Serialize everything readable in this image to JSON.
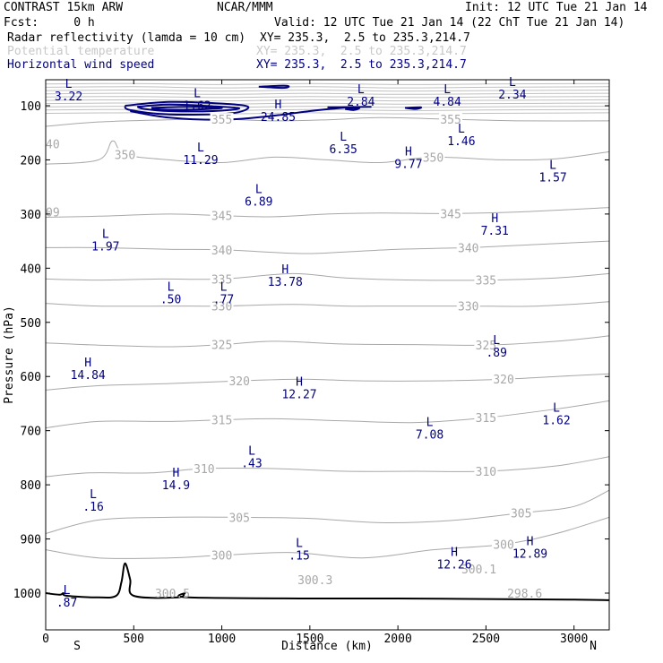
{
  "header": {
    "model": "CONTRAST 15km ARW",
    "org": "NCAR/MMM",
    "init": "Init: 12 UTC Tue 21 Jan 14",
    "fcst": "Fcst:     0 h",
    "valid": "Valid: 12 UTC Tue 21 Jan 14 (22 ChT Tue 21 Jan 14)",
    "fields": [
      {
        "name": "Radar reflectivity (lamda = 10 cm)",
        "xy": "XY= 235.3,  2.5 to 235.3,214.7",
        "color": "#000000"
      },
      {
        "name": "Potential temperature",
        "xy": "XY= 235.3,  2.5 to 235.3,214.7",
        "color": "#c8c8c8"
      },
      {
        "name": "Horizontal wind speed",
        "xy": "XY= 235.3,  2.5 to 235.3,214.7",
        "color": "#000080"
      }
    ]
  },
  "colors": {
    "theta": "#a8a8a8",
    "wind": "#000080",
    "terrain": "#000000",
    "frame": "#000000"
  },
  "chart_data": {
    "type": "cross-section",
    "xlabel": "Distance (km)",
    "ylabel": "Pressure (hPa)",
    "xlim": [
      0,
      3200
    ],
    "ylim": [
      1030,
      50
    ],
    "xticks": [
      0,
      500,
      1000,
      1500,
      2000,
      2500,
      3000
    ],
    "yticks": [
      100,
      200,
      300,
      400,
      500,
      600,
      700,
      800,
      900,
      1000
    ],
    "end_labels": {
      "left": "S",
      "right": "N"
    },
    "theta_levels": [
      {
        "value": 300,
        "label": "300",
        "pts": [
          [
            0,
            920
          ],
          [
            300,
            935
          ],
          [
            700,
            935
          ],
          [
            1000,
            930
          ],
          [
            1400,
            925
          ],
          [
            1800,
            935
          ],
          [
            2200,
            920
          ],
          [
            2600,
            910
          ],
          [
            2900,
            890
          ],
          [
            3200,
            860
          ]
        ]
      },
      {
        "value": 305,
        "label": "305",
        "pts": [
          [
            0,
            890
          ],
          [
            300,
            865
          ],
          [
            700,
            860
          ],
          [
            1100,
            860
          ],
          [
            1500,
            862
          ],
          [
            1900,
            870
          ],
          [
            2300,
            866
          ],
          [
            2700,
            852
          ],
          [
            3000,
            840
          ],
          [
            3200,
            810
          ]
        ]
      },
      {
        "value": 310,
        "label": "310",
        "pts": [
          [
            0,
            785
          ],
          [
            250,
            778
          ],
          [
            600,
            778
          ],
          [
            900,
            770
          ],
          [
            1300,
            770
          ],
          [
            1700,
            775
          ],
          [
            2100,
            775
          ],
          [
            2500,
            775
          ],
          [
            2900,
            765
          ],
          [
            3200,
            748
          ]
        ]
      },
      {
        "value": 315,
        "label": "315",
        "pts": [
          [
            0,
            695
          ],
          [
            300,
            683
          ],
          [
            700,
            683
          ],
          [
            1000,
            680
          ],
          [
            1300,
            678
          ],
          [
            1700,
            682
          ],
          [
            2100,
            685
          ],
          [
            2500,
            676
          ],
          [
            2900,
            660
          ],
          [
            3200,
            645
          ]
        ]
      },
      {
        "value": 320,
        "label": "320",
        "pts": [
          [
            0,
            625
          ],
          [
            300,
            617
          ],
          [
            700,
            613
          ],
          [
            1100,
            608
          ],
          [
            1450,
            605
          ],
          [
            1800,
            608
          ],
          [
            2200,
            608
          ],
          [
            2600,
            605
          ],
          [
            2900,
            600
          ],
          [
            3200,
            595
          ]
        ]
      },
      {
        "value": 325,
        "label": "325",
        "pts": [
          [
            0,
            538
          ],
          [
            300,
            542
          ],
          [
            700,
            545
          ],
          [
            1000,
            541
          ],
          [
            1300,
            535
          ],
          [
            1700,
            540
          ],
          [
            2100,
            541
          ],
          [
            2500,
            542
          ],
          [
            2900,
            535
          ],
          [
            3200,
            525
          ]
        ]
      },
      {
        "value": 330,
        "label": "330",
        "pts": [
          [
            0,
            465
          ],
          [
            300,
            470
          ],
          [
            700,
            470
          ],
          [
            1000,
            470
          ],
          [
            1400,
            467
          ],
          [
            1700,
            470
          ],
          [
            2000,
            470
          ],
          [
            2400,
            470
          ],
          [
            2800,
            470
          ],
          [
            3200,
            462
          ]
        ]
      },
      {
        "value": 335,
        "label": "335",
        "pts": [
          [
            0,
            420
          ],
          [
            300,
            422
          ],
          [
            650,
            420
          ],
          [
            1000,
            420
          ],
          [
            1400,
            410
          ],
          [
            1700,
            418
          ],
          [
            2100,
            422
          ],
          [
            2500,
            422
          ],
          [
            2900,
            418
          ],
          [
            3200,
            410
          ]
        ]
      },
      {
        "value": 340,
        "label": "340",
        "pts": [
          [
            0,
            362
          ],
          [
            300,
            362
          ],
          [
            700,
            365
          ],
          [
            1000,
            366
          ],
          [
            1450,
            373
          ],
          [
            1700,
            370
          ],
          [
            2000,
            365
          ],
          [
            2400,
            362
          ],
          [
            2800,
            356
          ],
          [
            3200,
            350
          ]
        ]
      },
      {
        "value": 345,
        "label": "345",
        "pts": [
          [
            0,
            306
          ],
          [
            300,
            304
          ],
          [
            700,
            300
          ],
          [
            1000,
            303
          ],
          [
            1300,
            305
          ],
          [
            1600,
            300
          ],
          [
            1900,
            298
          ],
          [
            2300,
            299
          ],
          [
            2700,
            296
          ],
          [
            3200,
            288
          ]
        ]
      },
      {
        "value": 350,
        "label": "350",
        "pts": [
          [
            0,
            208
          ],
          [
            300,
            200
          ],
          [
            380,
            165
          ],
          [
            450,
            190
          ],
          [
            700,
            200
          ],
          [
            1000,
            205
          ],
          [
            1300,
            195
          ],
          [
            1600,
            200
          ],
          [
            1900,
            205
          ],
          [
            2200,
            195
          ],
          [
            2600,
            200
          ],
          [
            2900,
            198
          ],
          [
            3200,
            185
          ]
        ]
      },
      {
        "value": 355,
        "label": "355",
        "pts": [
          [
            0,
            138
          ],
          [
            300,
            130
          ],
          [
            700,
            126
          ],
          [
            1000,
            125
          ],
          [
            1300,
            128
          ],
          [
            1600,
            126
          ],
          [
            1900,
            122
          ],
          [
            2300,
            125
          ],
          [
            2700,
            128
          ],
          [
            3200,
            128
          ]
        ]
      }
    ],
    "strat_isentropes": [
      60,
      66,
      72,
      78,
      84,
      90,
      96,
      102,
      108,
      114
    ],
    "theta_extra_labels": [
      {
        "text": "300.5",
        "x": 720,
        "p": 1000
      },
      {
        "text": "300.3",
        "x": 1530,
        "p": 975
      },
      {
        "text": "300.1",
        "x": 2460,
        "p": 955
      },
      {
        "text": "298.6",
        "x": 2720,
        "p": 1000
      },
      {
        "text": "40",
        "x": 40,
        "p": 170
      },
      {
        "text": "09",
        "x": 40,
        "p": 296
      }
    ],
    "wind_extrema": [
      {
        "type": "L",
        "value": "3.22",
        "x": 130,
        "p": 70
      },
      {
        "type": "L",
        "value": "1.62",
        "x": 860,
        "p": 88
      },
      {
        "type": "H",
        "value": "24.85",
        "x": 1320,
        "p": 108
      },
      {
        "type": "L",
        "value": "2.84",
        "x": 1790,
        "p": 80
      },
      {
        "type": "L",
        "value": "4.84",
        "x": 2280,
        "p": 80
      },
      {
        "type": "L",
        "value": "2.34",
        "x": 2650,
        "p": 67
      },
      {
        "type": "L",
        "value": "11.29",
        "x": 880,
        "p": 188
      },
      {
        "type": "L",
        "value": "6.35",
        "x": 1690,
        "p": 168
      },
      {
        "type": "L",
        "value": "1.46",
        "x": 2360,
        "p": 153
      },
      {
        "type": "H",
        "value": "9.77",
        "x": 2060,
        "p": 195
      },
      {
        "type": "L",
        "value": "1.57",
        "x": 2880,
        "p": 220
      },
      {
        "type": "L",
        "value": "6.89",
        "x": 1210,
        "p": 265
      },
      {
        "type": "H",
        "value": "7.31",
        "x": 2550,
        "p": 318
      },
      {
        "type": "L",
        "value": "1.97",
        "x": 340,
        "p": 347
      },
      {
        "type": "H",
        "value": "13.78",
        "x": 1360,
        "p": 413
      },
      {
        "type": "L",
        "value": ".50",
        "x": 710,
        "p": 445
      },
      {
        "type": "L",
        "value": ".77",
        "x": 1010,
        "p": 445
      },
      {
        "type": "L",
        "value": ".89",
        "x": 2560,
        "p": 543
      },
      {
        "type": "H",
        "value": "14.84",
        "x": 240,
        "p": 585
      },
      {
        "type": "H",
        "value": "12.27",
        "x": 1440,
        "p": 620
      },
      {
        "type": "L",
        "value": "1.62",
        "x": 2900,
        "p": 668
      },
      {
        "type": "L",
        "value": "7.08",
        "x": 2180,
        "p": 695
      },
      {
        "type": "L",
        "value": ".43",
        "x": 1170,
        "p": 748
      },
      {
        "type": "H",
        "value": "14.9",
        "x": 740,
        "p": 788
      },
      {
        "type": "L",
        "value": ".16",
        "x": 270,
        "p": 828
      },
      {
        "type": "L",
        "value": ".15",
        "x": 1440,
        "p": 918
      },
      {
        "type": "H",
        "value": "12.26",
        "x": 2320,
        "p": 935
      },
      {
        "type": "H",
        "value": "12.89",
        "x": 2750,
        "p": 915
      },
      {
        "type": "L",
        "value": ".87",
        "x": 120,
        "p": 1005
      }
    ],
    "wind_contours": [
      {
        "pts": [
          [
            450,
            100
          ],
          [
            700,
            93
          ],
          [
            1000,
            96
          ],
          [
            1150,
            102
          ],
          [
            1050,
            114
          ],
          [
            700,
            116
          ],
          [
            480,
            108
          ],
          [
            450,
            100
          ]
        ]
      },
      {
        "pts": [
          [
            520,
            102
          ],
          [
            700,
            98
          ],
          [
            950,
            101
          ],
          [
            1100,
            105
          ],
          [
            950,
            110
          ],
          [
            700,
            110
          ],
          [
            560,
            106
          ],
          [
            520,
            102
          ]
        ]
      },
      {
        "pts": [
          [
            600,
            104
          ],
          [
            800,
            102
          ],
          [
            1000,
            104
          ],
          [
            850,
            107
          ],
          [
            650,
            107
          ],
          [
            600,
            104
          ]
        ]
      },
      {
        "pts": [
          [
            480,
            110
          ],
          [
            700,
            122
          ],
          [
            1000,
            126
          ],
          [
            1250,
            120
          ],
          [
            1500,
            110
          ],
          [
            1650,
            105
          ],
          [
            1750,
            102
          ]
        ]
      },
      {
        "pts": [
          [
            1600,
            103
          ],
          [
            1850,
            102
          ]
        ]
      },
      {
        "pts": [
          [
            1700,
            106
          ],
          [
            1780,
            104
          ],
          [
            1750,
            108
          ],
          [
            1700,
            106
          ]
        ]
      },
      {
        "pts": [
          [
            2040,
            104
          ],
          [
            2130,
            103
          ],
          [
            2100,
            106
          ],
          [
            2040,
            104
          ]
        ]
      },
      {
        "pts": [
          [
            1210,
            65
          ],
          [
            1350,
            63
          ],
          [
            1380,
            65
          ],
          [
            1340,
            67
          ],
          [
            1210,
            65
          ]
        ]
      }
    ],
    "terrain": [
      [
        0,
        1000
      ],
      [
        80,
        1003
      ],
      [
        100,
        1000
      ],
      [
        120,
        1005
      ],
      [
        300,
        1008
      ],
      [
        400,
        1005
      ],
      [
        430,
        980
      ],
      [
        450,
        945
      ],
      [
        480,
        975
      ],
      [
        500,
        1005
      ],
      [
        750,
        1008
      ],
      [
        790,
        1000
      ],
      [
        810,
        1008
      ],
      [
        1500,
        1010
      ],
      [
        2000,
        1010
      ],
      [
        2500,
        1011
      ],
      [
        3000,
        1012
      ],
      [
        3200,
        1013
      ]
    ]
  }
}
